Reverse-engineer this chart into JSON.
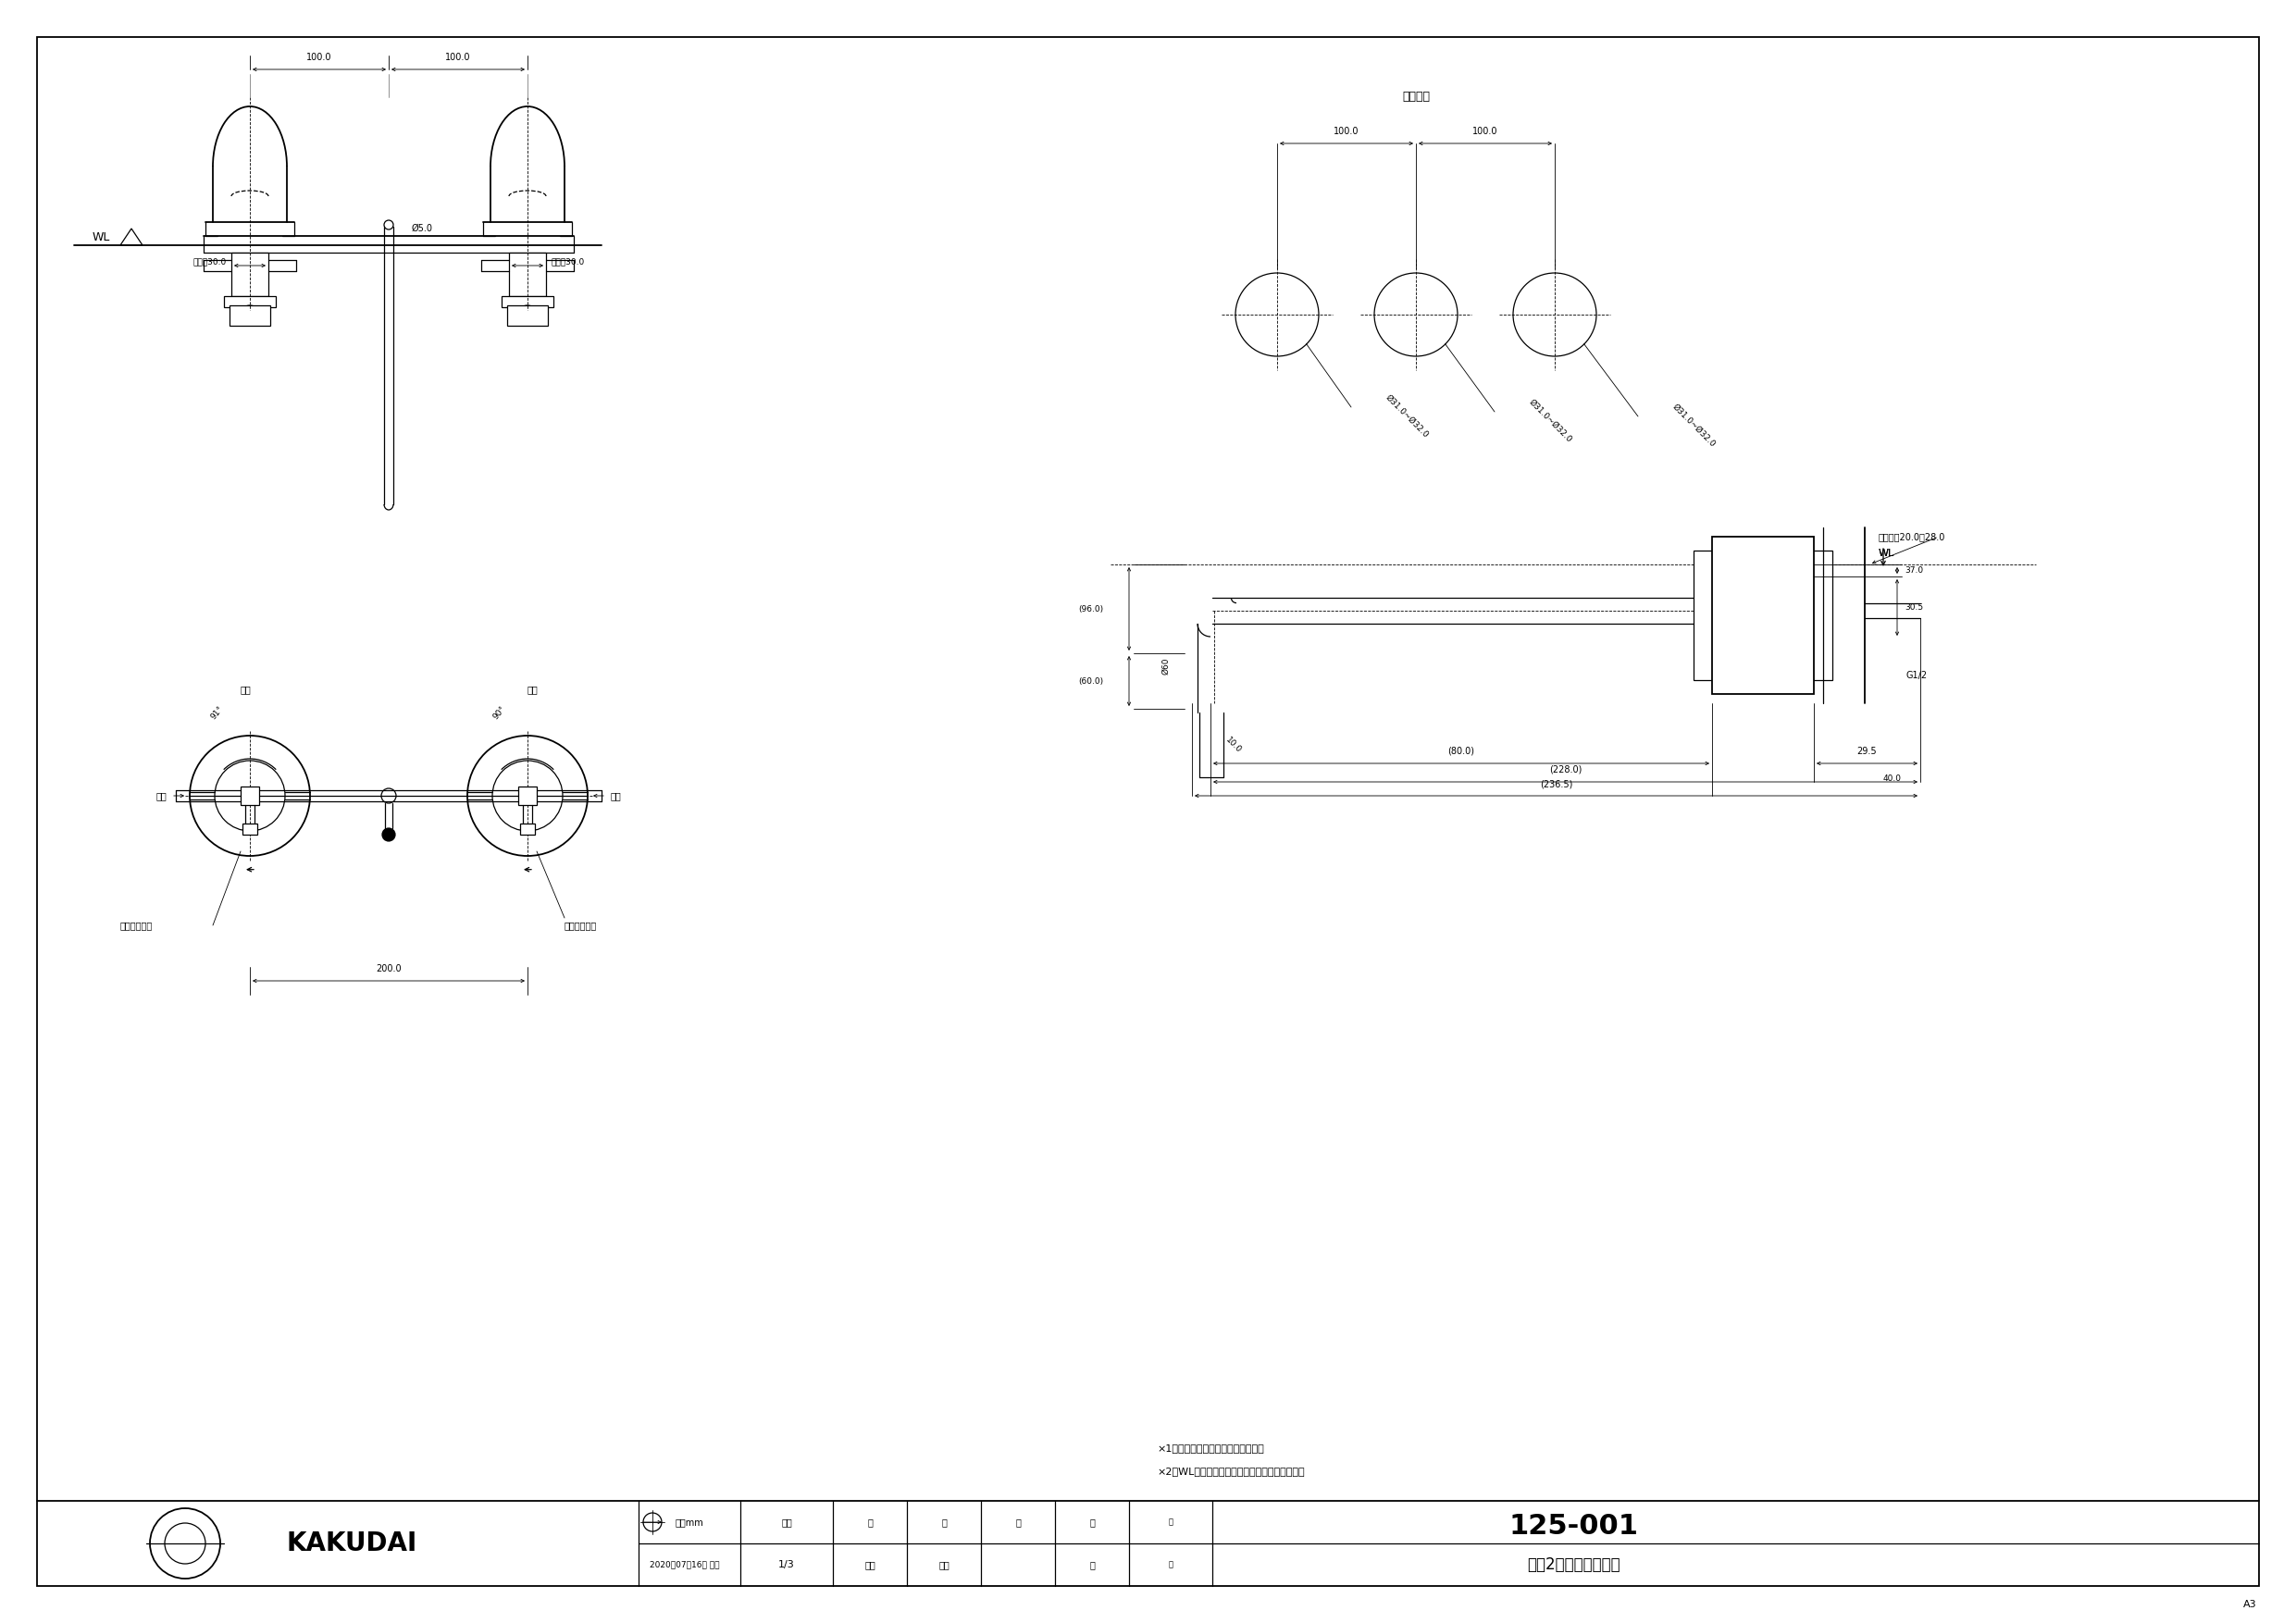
{
  "bg_color": "#ffffff",
  "line_color": "#000000",
  "title_product": "125-001",
  "title_name": "壁仕2ハンドル混合栓",
  "maker": "KAKUDAI",
  "date": "2020年07月16日 作成",
  "scale": "1/3",
  "unit": "単位mm",
  "page": "A3",
  "note1": "×1　（）内寸法は参考寸法である。",
  "note2": "×2　WLからの水栓寸法は壁厕により変化する。",
  "toritsuke": "取付穴径"
}
